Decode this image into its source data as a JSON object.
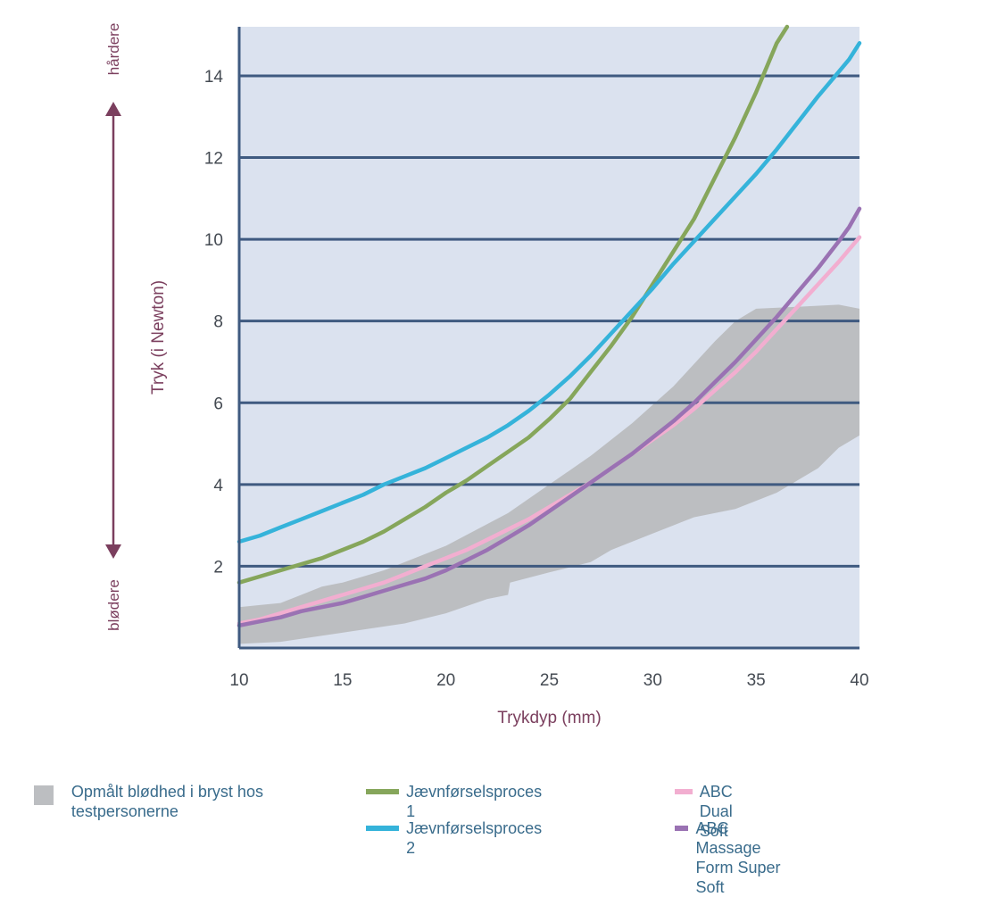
{
  "chart_data": {
    "type": "line",
    "xlabel": "Trykdyp (mm)",
    "ylabel": "Tryk (i Newton)",
    "xlim": [
      10,
      40
    ],
    "ylim": [
      0,
      15.2
    ],
    "x_ticks": [
      10,
      15,
      20,
      25,
      30,
      35,
      40
    ],
    "y_ticks": [
      2,
      4,
      6,
      8,
      10,
      12,
      14
    ],
    "grid": "horizontal",
    "annotations": {
      "top": "hårdere",
      "bottom": "blødere"
    },
    "band": {
      "name": "Opmålt blødhed i bryst hos testpersonerne",
      "color": "#bcbec1",
      "upper": [
        [
          10,
          1.0
        ],
        [
          11,
          1.05
        ],
        [
          12,
          1.1
        ],
        [
          13,
          1.3
        ],
        [
          14,
          1.5
        ],
        [
          15,
          1.6
        ],
        [
          17,
          1.9
        ],
        [
          20,
          2.5
        ],
        [
          23,
          3.3
        ],
        [
          25,
          4.0
        ],
        [
          27,
          4.7
        ],
        [
          29,
          5.5
        ],
        [
          31,
          6.4
        ],
        [
          33,
          7.5
        ],
        [
          34,
          8.0
        ],
        [
          35,
          8.3
        ],
        [
          37,
          8.35
        ],
        [
          39,
          8.4
        ],
        [
          40,
          8.3
        ]
      ],
      "lower": [
        [
          10,
          0.1
        ],
        [
          12,
          0.15
        ],
        [
          14,
          0.3
        ],
        [
          16,
          0.45
        ],
        [
          18,
          0.6
        ],
        [
          20,
          0.85
        ],
        [
          22,
          1.2
        ],
        [
          23,
          1.3
        ],
        [
          23.1,
          1.6
        ],
        [
          25,
          1.85
        ],
        [
          27,
          2.1
        ],
        [
          28,
          2.4
        ],
        [
          30,
          2.8
        ],
        [
          31,
          3.0
        ],
        [
          32,
          3.2
        ],
        [
          34,
          3.4
        ],
        [
          36,
          3.8
        ],
        [
          37,
          4.1
        ],
        [
          38,
          4.4
        ],
        [
          39,
          4.9
        ],
        [
          40,
          5.2
        ]
      ]
    },
    "series": [
      {
        "name": "Jævnførselsproces 1",
        "color": "#86a65b",
        "x": [
          10,
          11,
          12,
          13,
          14,
          15,
          16,
          17,
          18,
          19,
          20,
          21,
          22,
          23,
          24,
          25,
          26,
          27,
          28,
          29,
          30,
          31,
          32,
          33,
          34,
          35,
          35.5,
          36,
          36.5
        ],
        "y": [
          1.6,
          1.75,
          1.9,
          2.05,
          2.2,
          2.4,
          2.6,
          2.85,
          3.15,
          3.45,
          3.8,
          4.1,
          4.45,
          4.8,
          5.15,
          5.6,
          6.1,
          6.75,
          7.4,
          8.1,
          8.9,
          9.7,
          10.5,
          11.5,
          12.5,
          13.6,
          14.2,
          14.8,
          15.2
        ]
      },
      {
        "name": "Jævnførselsproces 2",
        "color": "#35b3da",
        "x": [
          10,
          11,
          12,
          13,
          14,
          15,
          16,
          17,
          18,
          19,
          20,
          21,
          22,
          23,
          24,
          25,
          26,
          27,
          28,
          29,
          30,
          31,
          32,
          33,
          34,
          35,
          36,
          37,
          38,
          39,
          39.5,
          40
        ],
        "y": [
          2.6,
          2.75,
          2.95,
          3.15,
          3.35,
          3.55,
          3.75,
          4.0,
          4.2,
          4.4,
          4.65,
          4.9,
          5.15,
          5.45,
          5.8,
          6.2,
          6.65,
          7.15,
          7.7,
          8.25,
          8.8,
          9.4,
          9.95,
          10.5,
          11.05,
          11.6,
          12.2,
          12.85,
          13.5,
          14.1,
          14.4,
          14.8
        ]
      },
      {
        "name": "ABC Dual Soft",
        "color": "#f2aed0",
        "x": [
          10,
          11,
          12,
          13,
          14,
          15,
          16,
          17,
          18,
          19,
          20,
          21,
          22,
          23,
          24,
          25,
          26,
          27,
          28,
          29,
          30,
          31,
          32,
          33,
          34,
          35,
          36,
          37,
          38,
          39,
          40
        ],
        "y": [
          0.6,
          0.7,
          0.85,
          1.0,
          1.15,
          1.3,
          1.45,
          1.6,
          1.8,
          2.0,
          2.2,
          2.4,
          2.65,
          2.9,
          3.15,
          3.45,
          3.75,
          4.05,
          4.4,
          4.75,
          5.1,
          5.45,
          5.85,
          6.3,
          6.75,
          7.25,
          7.8,
          8.35,
          8.9,
          9.45,
          10.05
        ]
      },
      {
        "name": "ABC Massage Form Super Soft",
        "color": "#9a72b3",
        "x": [
          10,
          11,
          12,
          13,
          14,
          15,
          16,
          17,
          18,
          19,
          20,
          21,
          22,
          23,
          24,
          25,
          26,
          27,
          28,
          29,
          30,
          31,
          32,
          33,
          34,
          35,
          36,
          37,
          38,
          39,
          39.5,
          40
        ],
        "y": [
          0.55,
          0.65,
          0.75,
          0.9,
          1.0,
          1.1,
          1.25,
          1.4,
          1.55,
          1.7,
          1.9,
          2.15,
          2.4,
          2.7,
          3.0,
          3.35,
          3.7,
          4.05,
          4.4,
          4.75,
          5.15,
          5.55,
          6.0,
          6.5,
          7.0,
          7.55,
          8.1,
          8.7,
          9.3,
          9.95,
          10.3,
          10.75
        ]
      }
    ]
  },
  "legend": {
    "band_label": "Opmålt blødhed i bryst hos testpersonerne",
    "series1_label": "Jævnførselsproces 1",
    "series2_label": "Jævnførselsproces 2",
    "series3_label": "ABC Dual Soft",
    "series4_label": "ABC Massage Form Super Soft"
  }
}
